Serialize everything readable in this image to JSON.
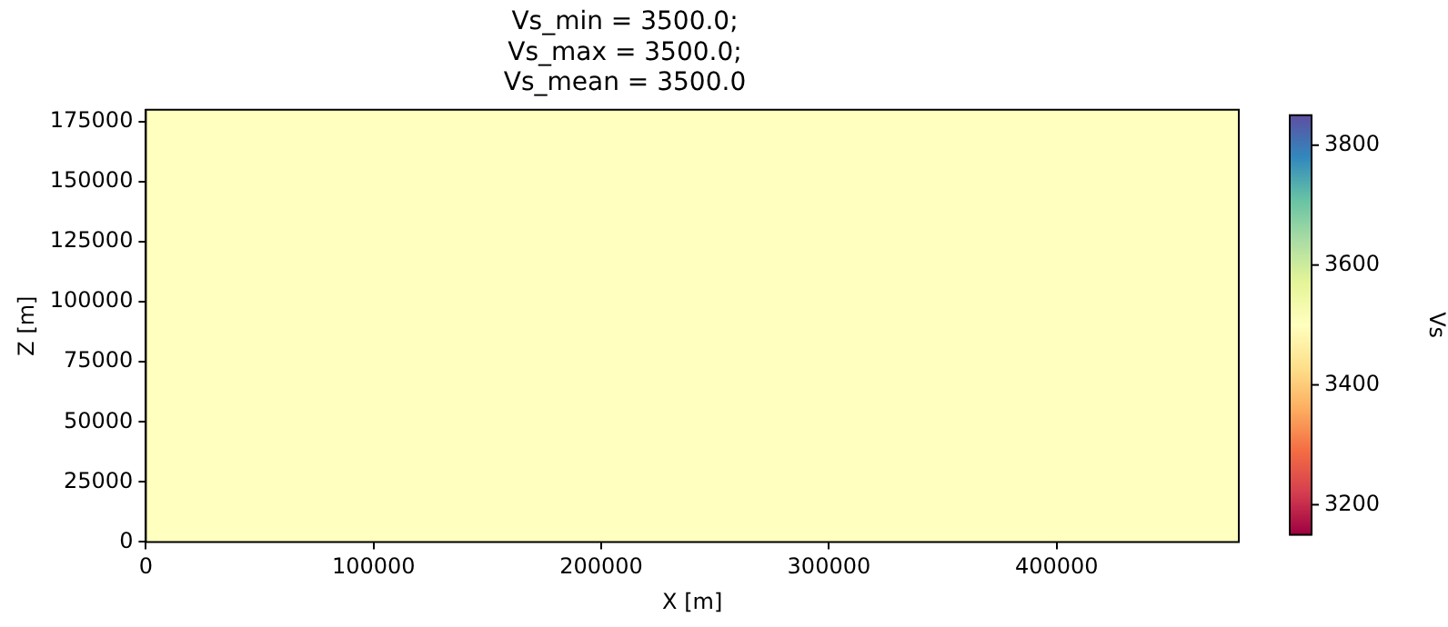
{
  "chart_data": {
    "type": "heatmap",
    "title": "Vs_min = 3500.0;\nVs_max = 3500.0;\nVs_mean = 3500.0",
    "xlabel": "X [m]",
    "ylabel": "Z [m]",
    "clabel": "Vs",
    "cells": [
      [
        3500
      ]
    ],
    "xlim": [
      0,
      480000
    ],
    "xticks": [
      0,
      100000,
      200000,
      300000,
      400000
    ],
    "ylim": [
      0,
      180000
    ],
    "yticks": [
      0,
      25000,
      50000,
      75000,
      100000,
      125000,
      150000,
      175000
    ],
    "clim": [
      3150,
      3850
    ],
    "cticks": [
      3200,
      3400,
      3600,
      3800
    ]
  }
}
